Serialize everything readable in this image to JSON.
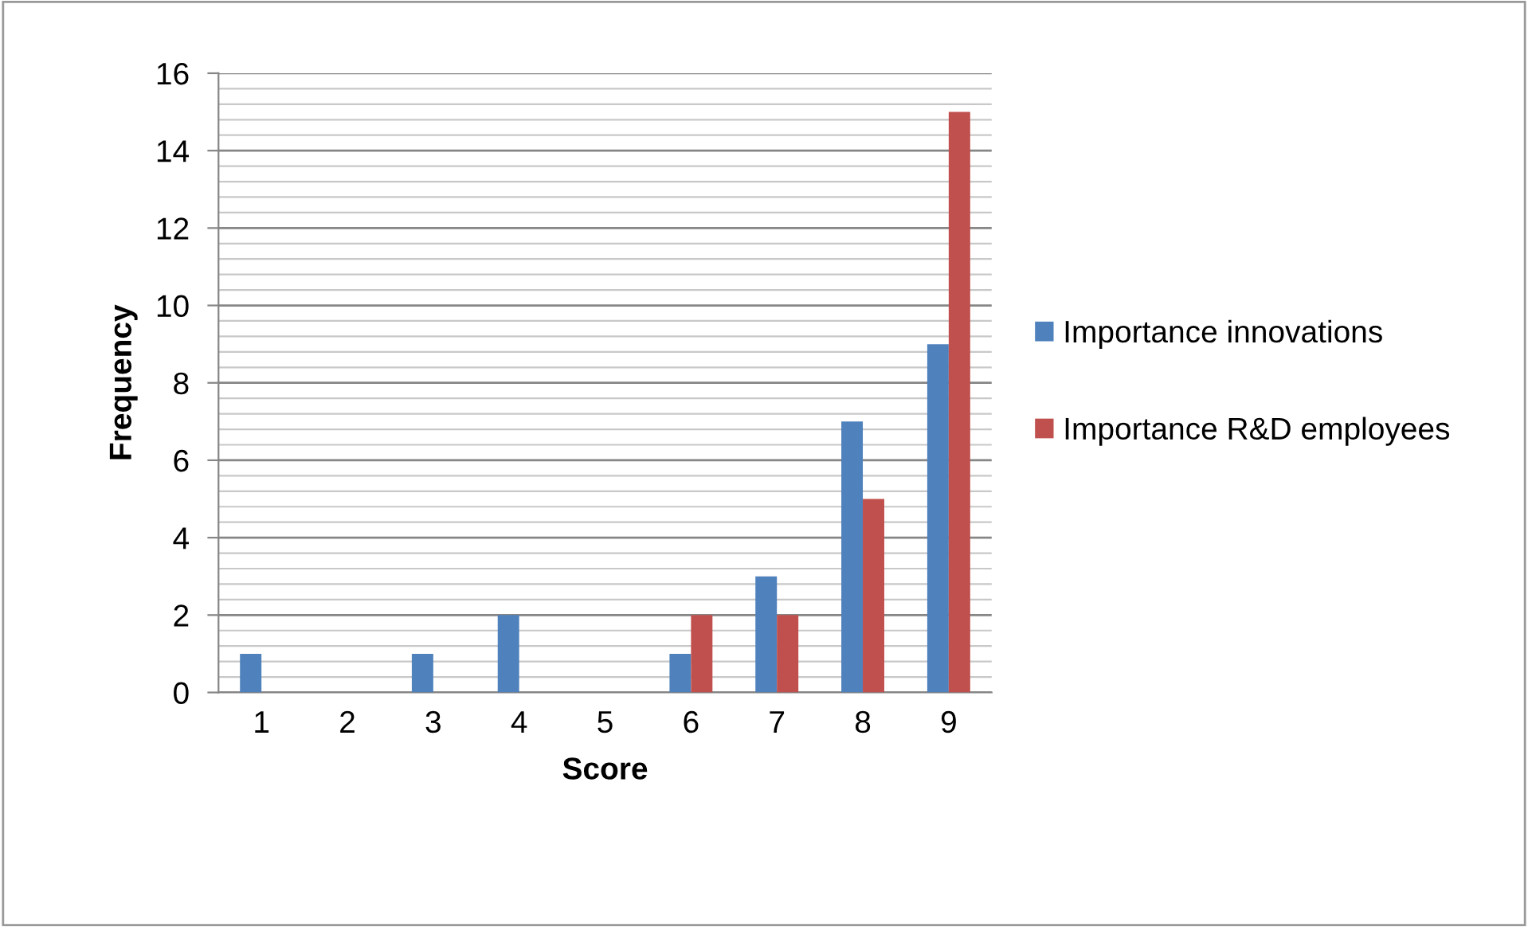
{
  "chart_data": {
    "type": "bar",
    "xlabel": "Score",
    "ylabel": "Frequency",
    "categories": [
      "1",
      "2",
      "3",
      "4",
      "5",
      "6",
      "7",
      "8",
      "9"
    ],
    "series": [
      {
        "name": "Importance innovations",
        "color": "#4f81bd",
        "values": [
          1,
          0,
          1,
          2,
          0,
          1,
          3,
          7,
          9
        ]
      },
      {
        "name": "Importance R&D employees",
        "color": "#c0504d",
        "values": [
          0,
          0,
          0,
          0,
          0,
          2,
          2,
          5,
          15
        ]
      }
    ],
    "ylim": [
      0,
      16
    ],
    "yticks": [
      0,
      2,
      4,
      6,
      8,
      10,
      12,
      14,
      16
    ],
    "grid": "y",
    "legend": "right"
  }
}
